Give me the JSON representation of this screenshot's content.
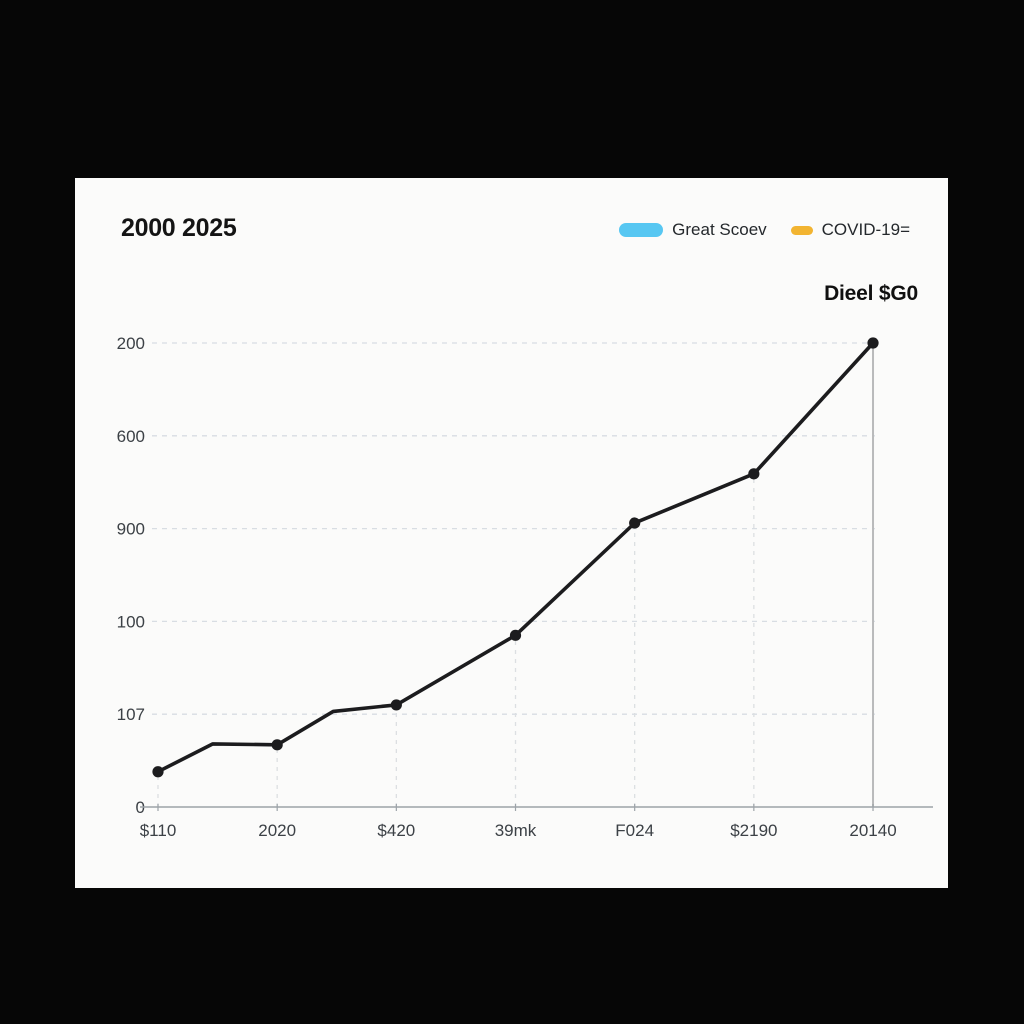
{
  "card": {
    "title": "2000 2025",
    "corner_label": "Dieel $G0"
  },
  "legend": {
    "items": [
      {
        "label": "Great Scoev",
        "color": "#57c7f2"
      },
      {
        "label": "COVID-19=",
        "color": "#f2b431"
      }
    ]
  },
  "chart_data": {
    "type": "line",
    "title": "2000 2025",
    "corner_label": "Dieel $G0",
    "legend_position": "top-right",
    "grid": "dashed",
    "line_color": "#1c1c1e",
    "marker_color": "#1c1c1e",
    "ylim": [
      0,
      500
    ],
    "y_ticks": [
      {
        "value": 500,
        "label": "200"
      },
      {
        "value": 400,
        "label": "600"
      },
      {
        "value": 300,
        "label": "900"
      },
      {
        "value": 200,
        "label": "100"
      },
      {
        "value": 100,
        "label": "107"
      },
      {
        "value": 0,
        "label": "0"
      }
    ],
    "x_tick_labels": [
      "$110",
      "2020",
      "$420",
      "39mk",
      "F024",
      "$2190",
      "20140"
    ],
    "series": [
      {
        "name": "Great Scoev",
        "points": [
          {
            "x": 0,
            "y": 38,
            "marker": true
          },
          {
            "x": 0.46,
            "y": 68,
            "marker": false
          },
          {
            "x": 1,
            "y": 67,
            "marker": true
          },
          {
            "x": 1.47,
            "y": 103,
            "marker": false
          },
          {
            "x": 2,
            "y": 110,
            "marker": true
          },
          {
            "x": 3,
            "y": 185,
            "marker": true
          },
          {
            "x": 4,
            "y": 306,
            "marker": true
          },
          {
            "x": 5,
            "y": 359,
            "marker": true
          },
          {
            "x": 6,
            "y": 500,
            "marker": true
          }
        ]
      }
    ],
    "highlight_vline_x": 6
  }
}
